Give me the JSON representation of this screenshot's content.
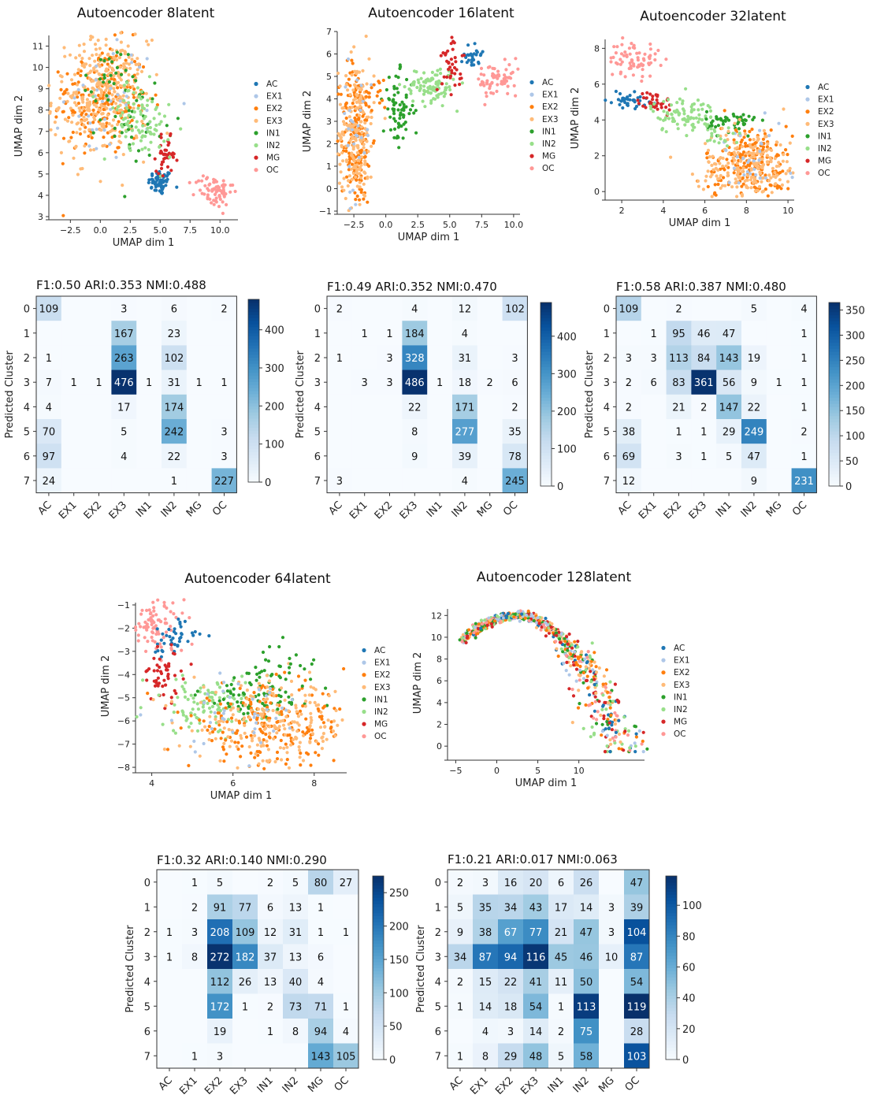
{
  "chart_data": [
    {
      "type": "scatter",
      "id": "s8",
      "title": "Autoencoder 8latent",
      "xlabel": "UMAP dim 1",
      "ylabel": "UMAP dim 2",
      "xlim": [
        -4.3,
        11.5
      ],
      "ylim": [
        3,
        11.5
      ],
      "xticks": [
        -2.5,
        0,
        2.5,
        5,
        7.5,
        10
      ],
      "xtick_labels": [
        "−2.5",
        "0.0",
        "2.5",
        "5.0",
        "7.5",
        "10.0"
      ],
      "yticks": [
        3,
        4,
        5,
        6,
        7,
        8,
        9,
        10,
        11
      ],
      "ytick_labels": [
        "3",
        "4",
        "5",
        "6",
        "7",
        "8",
        "9",
        "10",
        "11"
      ],
      "legend": [
        "AC",
        "EX1",
        "EX2",
        "EX3",
        "IN1",
        "IN2",
        "MG",
        "OC"
      ],
      "clusters": [
        [
          0,
          5,
          4.6,
          0.5,
          0.3,
          60
        ],
        [
          2,
          0,
          8.5,
          2,
          1.3,
          200
        ],
        [
          3,
          0,
          8.5,
          2,
          1.4,
          260
        ],
        [
          3,
          1,
          10,
          1,
          0.8,
          60
        ],
        [
          1,
          1,
          8.5,
          2,
          1.4,
          40
        ],
        [
          4,
          2.7,
          7.8,
          1.3,
          1,
          40
        ],
        [
          4,
          0.5,
          9.5,
          0.9,
          0.7,
          20
        ],
        [
          5,
          3,
          7.6,
          1.5,
          0.9,
          70
        ],
        [
          6,
          5.5,
          5.9,
          0.4,
          0.4,
          40
        ],
        [
          7,
          9.5,
          4.2,
          0.8,
          0.4,
          70
        ],
        [
          5,
          4.5,
          6.8,
          1,
          0.5,
          20
        ]
      ]
    },
    {
      "type": "scatter",
      "id": "s16",
      "title": "Autoencoder 16latent",
      "xlabel": "UMAP dim 1",
      "ylabel": "UMAP dim 2",
      "xlim": [
        -3.8,
        10.5
      ],
      "ylim": [
        -1,
        7
      ],
      "xticks": [
        -2.5,
        0,
        2.5,
        5,
        7.5,
        10
      ],
      "xtick_labels": [
        "−2.5",
        "0.0",
        "2.5",
        "5.0",
        "7.5",
        "10.0"
      ],
      "yticks": [
        -1,
        0,
        1,
        2,
        3,
        4,
        5,
        6,
        7
      ],
      "ytick_labels": [
        "−1",
        "0",
        "1",
        "2",
        "3",
        "4",
        "5",
        "6",
        "7"
      ],
      "legend": [
        "AC",
        "EX1",
        "EX2",
        "EX3",
        "IN1",
        "IN2",
        "MG",
        "OC"
      ],
      "clusters": [
        [
          0,
          6.8,
          6,
          0.35,
          0.35,
          30
        ],
        [
          2,
          -2.3,
          2.4,
          0.6,
          1.6,
          180
        ],
        [
          3,
          -2.3,
          2.4,
          0.7,
          1.7,
          200
        ],
        [
          1,
          -2.3,
          2.6,
          0.6,
          1.5,
          30
        ],
        [
          4,
          1,
          3.5,
          0.6,
          0.8,
          70
        ],
        [
          5,
          3.5,
          4.6,
          1,
          0.4,
          100
        ],
        [
          6,
          5.2,
          5.7,
          0.4,
          0.7,
          40
        ],
        [
          7,
          8.8,
          4.8,
          0.9,
          0.4,
          70
        ],
        [
          2,
          -1,
          4.1,
          0.5,
          0.4,
          20
        ]
      ]
    },
    {
      "type": "scatter",
      "id": "s32",
      "title": "Autoencoder 32latent",
      "xlabel": "UMAP dim 1",
      "ylabel": "UMAP dim 2",
      "xlim": [
        1.2,
        10.3
      ],
      "ylim": [
        -0.3,
        8.5
      ],
      "xticks": [
        2,
        4,
        6,
        8,
        10
      ],
      "xtick_labels": [
        "2",
        "4",
        "6",
        "8",
        "10"
      ],
      "yticks": [
        0,
        2,
        4,
        6,
        8
      ],
      "ytick_labels": [
        "0",
        "2",
        "4",
        "6",
        "8"
      ],
      "legend": [
        "AC",
        "EX1",
        "EX2",
        "EX3",
        "IN1",
        "IN2",
        "MG",
        "OC"
      ],
      "clusters": [
        [
          7,
          2.6,
          7.4,
          0.6,
          0.5,
          70
        ],
        [
          0,
          2.3,
          5.1,
          0.5,
          0.2,
          40
        ],
        [
          6,
          3.6,
          5,
          0.4,
          0.3,
          40
        ],
        [
          5,
          5,
          4.3,
          0.8,
          0.5,
          90
        ],
        [
          4,
          7.3,
          3.9,
          0.6,
          0.3,
          50
        ],
        [
          2,
          8.2,
          1.5,
          1.1,
          1.1,
          200
        ],
        [
          3,
          8.2,
          1.4,
          1.2,
          1.1,
          220
        ],
        [
          1,
          8.2,
          1.6,
          1,
          1,
          30
        ],
        [
          5,
          6.5,
          3,
          0.7,
          0.5,
          20
        ]
      ]
    },
    {
      "type": "scatter",
      "id": "s64",
      "title": "Autoencoder 64latent",
      "xlabel": "UMAP dim 1",
      "ylabel": "UMAP dim 2",
      "xlim": [
        3.6,
        8.8
      ],
      "ylim": [
        -8.1,
        -0.9
      ],
      "xticks": [
        4,
        6,
        8
      ],
      "xtick_labels": [
        "4",
        "6",
        "8"
      ],
      "yticks": [
        -8,
        -7,
        -6,
        -5,
        -4,
        -3,
        -2,
        -1
      ],
      "ytick_labels": [
        "−8",
        "−7",
        "−6",
        "−5",
        "−4",
        "−3",
        "−2",
        "−1"
      ],
      "legend": [
        "AC",
        "EX1",
        "EX2",
        "EX3",
        "IN1",
        "IN2",
        "MG",
        "OC"
      ],
      "clusters": [
        [
          7,
          4.1,
          -1.9,
          0.35,
          0.6,
          90
        ],
        [
          0,
          4.5,
          -2.4,
          0.3,
          0.4,
          40
        ],
        [
          6,
          4.3,
          -4,
          0.3,
          0.6,
          50
        ],
        [
          5,
          5.4,
          -5.3,
          0.8,
          0.6,
          110
        ],
        [
          4,
          6.6,
          -4.9,
          0.7,
          0.6,
          80
        ],
        [
          2,
          6.9,
          -6.3,
          1,
          0.9,
          200
        ],
        [
          3,
          7,
          -6.2,
          1,
          0.9,
          200
        ],
        [
          1,
          6,
          -5.6,
          1,
          0.9,
          40
        ],
        [
          4,
          7.3,
          -3.8,
          0.3,
          0.5,
          20
        ]
      ]
    },
    {
      "type": "scatter",
      "id": "s128",
      "title": "Autoencoder 128latent",
      "xlabel": "UMAP dim 1",
      "ylabel": "UMAP dim 2",
      "xlim": [
        -6,
        18
      ],
      "ylim": [
        -1,
        12.6
      ],
      "xticks": [
        -5,
        0,
        5,
        10
      ],
      "xtick_labels": [
        "−5",
        "0",
        "5",
        "10"
      ],
      "yticks": [
        0,
        2,
        4,
        6,
        8,
        10,
        12
      ],
      "ytick_labels": [
        "0",
        "2",
        "4",
        "6",
        "8",
        "10",
        "12"
      ],
      "legend": [
        "AC",
        "EX1",
        "EX2",
        "EX3",
        "IN1",
        "IN2",
        "MG",
        "OC"
      ],
      "arc": true
    },
    {
      "type": "heatmap",
      "id": "h8",
      "title": "F1:0.50    ARI:0.353    NMI:0.488",
      "xlabel": "",
      "ylabel": "Predicted Cluster",
      "xcategories": [
        "AC",
        "EX1",
        "EX2",
        "EX3",
        "IN1",
        "IN2",
        "MG",
        "OC"
      ],
      "ycategories": [
        "0",
        "1",
        "2",
        "3",
        "4",
        "5",
        "6",
        "7"
      ],
      "vmax": 480,
      "cbar_ticks": [
        0,
        100,
        200,
        300,
        400
      ],
      "values": [
        [
          109,
          0,
          0,
          3,
          0,
          6,
          0,
          2
        ],
        [
          0,
          0,
          0,
          167,
          0,
          23,
          0,
          0
        ],
        [
          1,
          0,
          0,
          263,
          0,
          102,
          0,
          0
        ],
        [
          7,
          1,
          1,
          476,
          1,
          31,
          1,
          1
        ],
        [
          4,
          0,
          0,
          17,
          0,
          174,
          0,
          0
        ],
        [
          70,
          0,
          0,
          5,
          0,
          242,
          0,
          3
        ],
        [
          97,
          0,
          0,
          4,
          0,
          22,
          0,
          3
        ],
        [
          24,
          0,
          0,
          0,
          0,
          1,
          0,
          227
        ]
      ]
    },
    {
      "type": "heatmap",
      "id": "h16",
      "title": "F1:0.49    ARI:0.352    NMI:0.470",
      "xlabel": "",
      "ylabel": "Predicted Cluster",
      "xcategories": [
        "AC",
        "EX1",
        "EX2",
        "EX3",
        "IN1",
        "IN2",
        "MG",
        "OC"
      ],
      "ycategories": [
        "0",
        "1",
        "2",
        "3",
        "4",
        "5",
        "6",
        "7"
      ],
      "vmax": 490,
      "cbar_ticks": [
        0,
        100,
        200,
        300,
        400
      ],
      "values": [
        [
          2,
          0,
          0,
          4,
          0,
          12,
          0,
          102
        ],
        [
          0,
          1,
          1,
          184,
          0,
          4,
          0,
          0
        ],
        [
          1,
          0,
          3,
          328,
          0,
          31,
          0,
          3
        ],
        [
          0,
          3,
          3,
          486,
          1,
          18,
          2,
          6
        ],
        [
          0,
          0,
          0,
          22,
          0,
          171,
          0,
          2
        ],
        [
          0,
          0,
          0,
          8,
          0,
          277,
          0,
          35
        ],
        [
          0,
          0,
          0,
          9,
          0,
          39,
          0,
          78
        ],
        [
          3,
          0,
          0,
          0,
          0,
          4,
          0,
          245
        ]
      ]
    },
    {
      "type": "heatmap",
      "id": "h32",
      "title": "F1:0.58    ARI:0.387    NMI:0.480",
      "xlabel": "",
      "ylabel": "Predicted Cluster",
      "xcategories": [
        "AC",
        "EX1",
        "EX2",
        "EX3",
        "IN1",
        "IN2",
        "MG",
        "OC"
      ],
      "ycategories": [
        "0",
        "1",
        "2",
        "3",
        "4",
        "5",
        "6",
        "7"
      ],
      "vmax": 365,
      "cbar_ticks": [
        0,
        50,
        100,
        150,
        200,
        250,
        300,
        350
      ],
      "values": [
        [
          109,
          0,
          2,
          0,
          0,
          5,
          0,
          4
        ],
        [
          0,
          1,
          95,
          46,
          47,
          0,
          0,
          1
        ],
        [
          3,
          3,
          113,
          84,
          143,
          19,
          0,
          1
        ],
        [
          2,
          6,
          83,
          361,
          56,
          9,
          1,
          1
        ],
        [
          2,
          0,
          21,
          2,
          147,
          22,
          0,
          1
        ],
        [
          38,
          0,
          1,
          1,
          29,
          249,
          0,
          2
        ],
        [
          69,
          0,
          3,
          1,
          5,
          47,
          0,
          1
        ],
        [
          12,
          0,
          0,
          0,
          0,
          9,
          0,
          231
        ]
      ]
    },
    {
      "type": "heatmap",
      "id": "h64",
      "title": "F1:0.32    ARI:0.140    NMI:0.290",
      "xlabel": "",
      "ylabel": "Predicted Cluster",
      "xcategories": [
        "AC",
        "EX1",
        "EX2",
        "EX3",
        "IN1",
        "IN2",
        "MG",
        "OC"
      ],
      "ycategories": [
        "0",
        "1",
        "2",
        "3",
        "4",
        "5",
        "6",
        "7"
      ],
      "vmax": 275,
      "cbar_ticks": [
        0,
        50,
        100,
        150,
        200,
        250
      ],
      "values": [
        [
          0,
          1,
          5,
          0,
          2,
          5,
          80,
          27
        ],
        [
          0,
          2,
          91,
          77,
          6,
          13,
          1,
          0
        ],
        [
          1,
          3,
          208,
          109,
          12,
          31,
          1,
          1
        ],
        [
          1,
          8,
          272,
          182,
          37,
          13,
          6,
          0
        ],
        [
          0,
          0,
          112,
          26,
          13,
          40,
          4,
          0
        ],
        [
          0,
          0,
          172,
          1,
          2,
          73,
          71,
          1
        ],
        [
          0,
          0,
          19,
          0,
          1,
          8,
          94,
          4
        ],
        [
          0,
          1,
          3,
          0,
          0,
          0,
          143,
          105
        ]
      ]
    },
    {
      "type": "heatmap",
      "id": "h128",
      "title": "F1:0.21    ARI:0.017    NMI:0.063",
      "xlabel": "",
      "ylabel": "Predicted Cluster",
      "xcategories": [
        "AC",
        "EX1",
        "EX2",
        "EX3",
        "IN1",
        "IN2",
        "MG",
        "OC"
      ],
      "ycategories": [
        "0",
        "1",
        "2",
        "3",
        "4",
        "5",
        "6",
        "7"
      ],
      "vmax": 119,
      "cbar_ticks": [
        0,
        20,
        40,
        60,
        80,
        100
      ],
      "values": [
        [
          2,
          3,
          16,
          20,
          6,
          26,
          0,
          47
        ],
        [
          5,
          35,
          34,
          43,
          17,
          14,
          3,
          39
        ],
        [
          9,
          38,
          67,
          77,
          21,
          47,
          3,
          104
        ],
        [
          34,
          87,
          94,
          116,
          45,
          46,
          10,
          87
        ],
        [
          2,
          15,
          22,
          41,
          11,
          50,
          0,
          54
        ],
        [
          1,
          14,
          18,
          54,
          1,
          113,
          0,
          119
        ],
        [
          0,
          4,
          3,
          14,
          2,
          75,
          0,
          28
        ],
        [
          1,
          8,
          29,
          48,
          5,
          58,
          0,
          103
        ]
      ]
    }
  ],
  "colors": {
    "AC": "#1f77b4",
    "EX1": "#aec7e8",
    "EX2": "#ff7f0e",
    "EX3": "#ffbb78",
    "IN1": "#2ca02c",
    "IN2": "#98df8a",
    "MG": "#d62728",
    "OC": "#ff9896"
  }
}
